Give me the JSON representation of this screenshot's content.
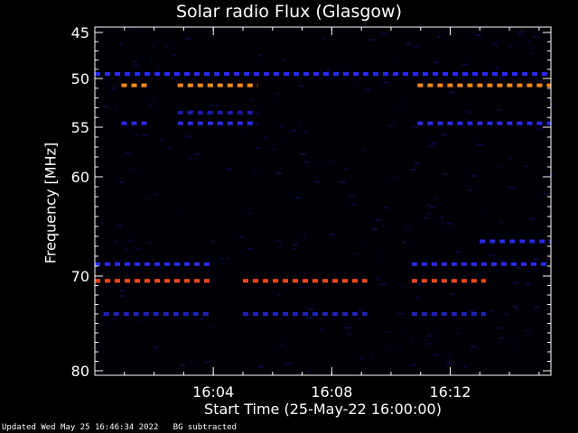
{
  "chart_data": {
    "type": "heatmap",
    "title": "Solar radio Flux (Glasgow)",
    "xlabel": "Start Time (25-May-22 16:00:00)",
    "ylabel": "Frequency [MHz]",
    "xlim_minutes": [
      0,
      15.4
    ],
    "ylim": [
      45,
      80
    ],
    "x_ticks": [
      {
        "minute": 4,
        "label": "16:04"
      },
      {
        "minute": 8,
        "label": "16:08"
      },
      {
        "minute": 12,
        "label": "16:12"
      }
    ],
    "y_tick_labels": [
      {
        "value": 45,
        "label": "45"
      },
      {
        "value": 50,
        "label": "50"
      },
      {
        "value": 55,
        "label": "55"
      },
      {
        "value": 60,
        "label": "60"
      },
      {
        "value": 70,
        "label": "70"
      },
      {
        "value": 80,
        "label": "80"
      }
    ],
    "bands": [
      {
        "freq": 49.5,
        "start": 0.0,
        "end": 15.4,
        "color": "#2a2aff"
      },
      {
        "freq": 50.7,
        "start": 0.9,
        "end": 1.9,
        "color": "#ff8c1a"
      },
      {
        "freq": 50.7,
        "start": 2.8,
        "end": 5.5,
        "color": "#ff8c1a"
      },
      {
        "freq": 50.7,
        "start": 10.9,
        "end": 15.4,
        "color": "#ff8c1a"
      },
      {
        "freq": 53.5,
        "start": 2.8,
        "end": 5.5,
        "color": "#1a1aaa"
      },
      {
        "freq": 54.6,
        "start": 0.9,
        "end": 1.9,
        "color": "#2a2aee"
      },
      {
        "freq": 54.6,
        "start": 2.8,
        "end": 5.5,
        "color": "#2a2aee"
      },
      {
        "freq": 54.6,
        "start": 10.9,
        "end": 15.4,
        "color": "#2a2aee"
      },
      {
        "freq": 68.8,
        "start": 0.0,
        "end": 3.9,
        "color": "#2a2aee"
      },
      {
        "freq": 68.8,
        "start": 10.7,
        "end": 15.4,
        "color": "#2a2aee"
      },
      {
        "freq": 70.5,
        "start": 0.0,
        "end": 3.9,
        "color": "#ff4a1a"
      },
      {
        "freq": 70.5,
        "start": 5.0,
        "end": 9.2,
        "color": "#ff4a1a"
      },
      {
        "freq": 70.5,
        "start": 10.7,
        "end": 13.2,
        "color": "#ff4a1a"
      },
      {
        "freq": 74.0,
        "start": 0.3,
        "end": 3.9,
        "color": "#2222bb"
      },
      {
        "freq": 74.0,
        "start": 5.0,
        "end": 9.2,
        "color": "#2222bb"
      },
      {
        "freq": 74.0,
        "start": 10.7,
        "end": 13.2,
        "color": "#2222bb"
      },
      {
        "freq": 66.5,
        "start": 13.0,
        "end": 15.4,
        "color": "#2a2aee"
      }
    ]
  },
  "footer": {
    "updated": "Updated Wed May 25 16:46:34 2022",
    "note": "BG subtracted"
  }
}
